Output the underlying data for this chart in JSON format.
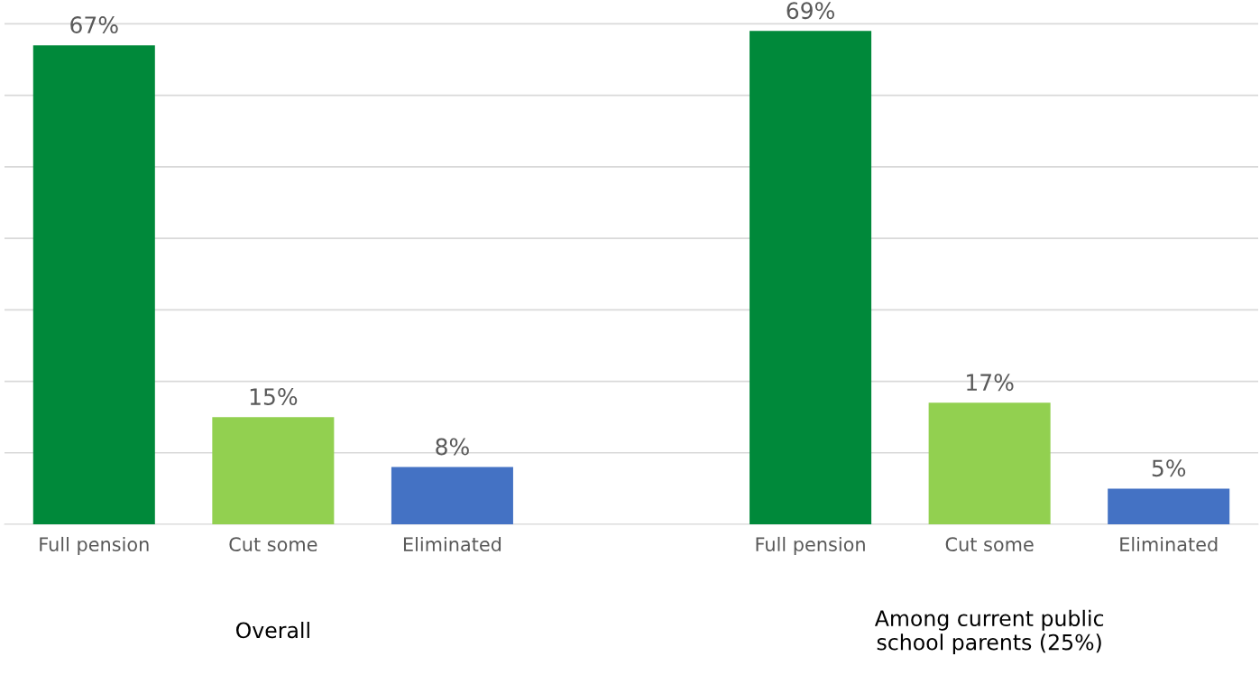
{
  "chart_data": {
    "type": "bar",
    "categories": [
      "Full pension",
      "Cut some",
      "Eliminated",
      null,
      "Full pension",
      "Cut some",
      "Eliminated"
    ],
    "values": [
      67,
      15,
      8,
      null,
      69,
      17,
      5
    ],
    "colors": [
      "#00893a",
      "#92d050",
      "#4472c4",
      "#ffffff",
      "#00893a",
      "#92d050",
      "#4472c4"
    ],
    "value_labels": [
      "67%",
      "15%",
      "8%",
      null,
      "69%",
      "17%",
      "5%"
    ],
    "tick_labels": "x",
    "grid": "y",
    "annotations": [
      "Overall",
      "Among current public\nschool parents (25%)"
    ]
  }
}
